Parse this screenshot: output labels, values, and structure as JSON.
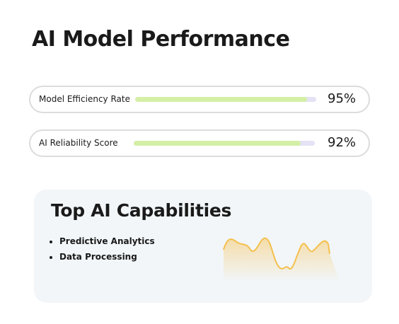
{
  "header": {
    "title": "AI Model Performance"
  },
  "metrics": {
    "xlim": [
      0,
      100
    ],
    "items": [
      {
        "label": "Model Efficiency Rate",
        "value": 95,
        "value_label": "95%"
      },
      {
        "label": "AI Reliability Score",
        "value": 92,
        "value_label": "92%"
      }
    ]
  },
  "capabilities": {
    "title": "Top AI Capabilities",
    "items": [
      "Predictive Analytics",
      "Data Processing"
    ]
  }
}
